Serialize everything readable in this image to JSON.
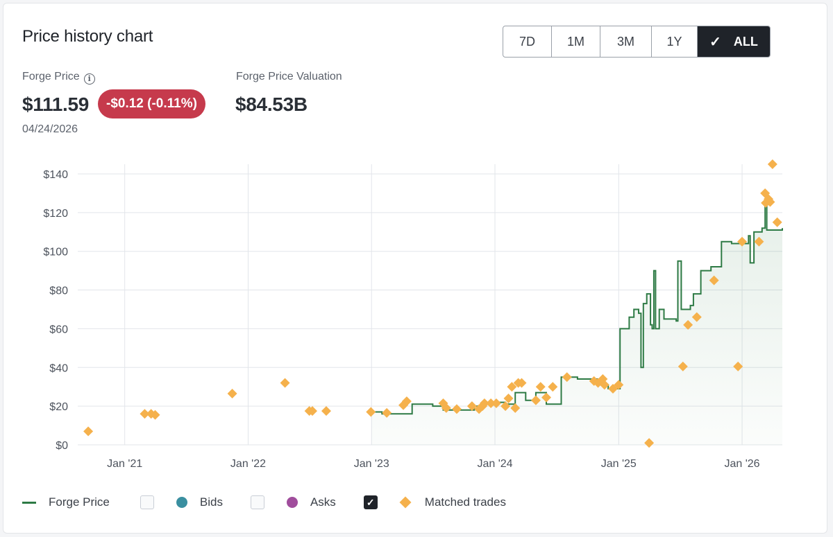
{
  "title": "Price history chart",
  "range_buttons": [
    "7D",
    "1M",
    "3M",
    "1Y",
    "ALL"
  ],
  "active_range": "ALL",
  "check_glyph": "✓",
  "forge_price": {
    "label": "Forge Price",
    "value": "$111.59",
    "change": "-$0.12 (-0.11%)",
    "date": "04/24/2026"
  },
  "valuation": {
    "label": "Forge Price Valuation",
    "value": "$84.53B"
  },
  "legend": {
    "forge_price": "Forge Price",
    "bids": "Bids",
    "asks": "Asks",
    "matched": "Matched trades"
  },
  "colors": {
    "line": "#2d7a44",
    "trades": "#f5b14c",
    "bids": "#3a8fa0",
    "asks": "#a04d9c",
    "badge": "#c63a4c"
  },
  "chart_data": {
    "type": "line",
    "x_type": "date",
    "xlim": [
      "2020-08-15",
      "2026-04-30"
    ],
    "ylim": [
      0,
      145
    ],
    "y_ticks": [
      0,
      20,
      40,
      60,
      80,
      100,
      120,
      140
    ],
    "y_tick_labels": [
      "$0",
      "$20",
      "$40",
      "$60",
      "$80",
      "$100",
      "$120",
      "$140"
    ],
    "x_ticks": [
      "2021-01-01",
      "2022-01-01",
      "2023-01-01",
      "2024-01-01",
      "2025-01-01",
      "2026-01-01"
    ],
    "x_tick_labels": [
      "Jan '21",
      "Jan '22",
      "Jan '23",
      "Jan '24",
      "Jan '25",
      "Jan '26"
    ],
    "grid": true,
    "legend_position": "bottom",
    "series": [
      {
        "name": "Forge Price",
        "type": "step-line",
        "points": [
          [
            "2023-01-01",
            17
          ],
          [
            "2023-02-01",
            16
          ],
          [
            "2023-05-01",
            21
          ],
          [
            "2023-07-01",
            20
          ],
          [
            "2023-08-01",
            18
          ],
          [
            "2023-10-01",
            18
          ],
          [
            "2023-11-01",
            20
          ],
          [
            "2023-12-01",
            22
          ],
          [
            "2024-01-01",
            22
          ],
          [
            "2024-02-01",
            21
          ],
          [
            "2024-03-01",
            27
          ],
          [
            "2024-04-01",
            23
          ],
          [
            "2024-05-01",
            27
          ],
          [
            "2024-06-01",
            21
          ],
          [
            "2024-07-01",
            21
          ],
          [
            "2024-07-15",
            35
          ],
          [
            "2024-09-01",
            34
          ],
          [
            "2024-10-01",
            34
          ],
          [
            "2024-11-15",
            31
          ],
          [
            "2024-12-01",
            29
          ],
          [
            "2025-01-01",
            29
          ],
          [
            "2025-01-05",
            60
          ],
          [
            "2025-02-01",
            66
          ],
          [
            "2025-02-15",
            70
          ],
          [
            "2025-03-01",
            68
          ],
          [
            "2025-03-08",
            40
          ],
          [
            "2025-03-15",
            73
          ],
          [
            "2025-03-25",
            78
          ],
          [
            "2025-04-05",
            62
          ],
          [
            "2025-04-10",
            60
          ],
          [
            "2025-04-15",
            90
          ],
          [
            "2025-04-20",
            60
          ],
          [
            "2025-05-01",
            70
          ],
          [
            "2025-05-15",
            65
          ],
          [
            "2025-06-20",
            64
          ],
          [
            "2025-06-25",
            95
          ],
          [
            "2025-07-05",
            70
          ],
          [
            "2025-08-01",
            72
          ],
          [
            "2025-08-10",
            78
          ],
          [
            "2025-09-01",
            90
          ],
          [
            "2025-10-01",
            92
          ],
          [
            "2025-11-01",
            105
          ],
          [
            "2025-12-01",
            104
          ],
          [
            "2026-01-20",
            108
          ],
          [
            "2026-01-25",
            94
          ],
          [
            "2026-02-05",
            110
          ],
          [
            "2026-03-01",
            112
          ],
          [
            "2026-03-10",
            125
          ],
          [
            "2026-03-15",
            111
          ],
          [
            "2026-04-30",
            112
          ]
        ]
      },
      {
        "name": "Matched trades",
        "type": "scatter",
        "points": [
          [
            "2020-09-15",
            7
          ],
          [
            "2021-03-01",
            16
          ],
          [
            "2021-03-20",
            16
          ],
          [
            "2021-04-01",
            15.5
          ],
          [
            "2021-11-15",
            26.5
          ],
          [
            "2022-04-20",
            32
          ],
          [
            "2022-07-01",
            17.5
          ],
          [
            "2022-07-10",
            17.5
          ],
          [
            "2022-08-20",
            17.5
          ],
          [
            "2022-12-30",
            17
          ],
          [
            "2023-02-15",
            16.5
          ],
          [
            "2023-04-05",
            20.5
          ],
          [
            "2023-04-15",
            22.5
          ],
          [
            "2023-08-01",
            21.5
          ],
          [
            "2023-08-10",
            19
          ],
          [
            "2023-09-10",
            18.5
          ],
          [
            "2023-10-25",
            20
          ],
          [
            "2023-11-15",
            18.5
          ],
          [
            "2023-11-25",
            20
          ],
          [
            "2023-12-01",
            21.5
          ],
          [
            "2023-12-20",
            21.5
          ],
          [
            "2024-01-05",
            21.5
          ],
          [
            "2024-02-01",
            20
          ],
          [
            "2024-02-10",
            24
          ],
          [
            "2024-02-20",
            30
          ],
          [
            "2024-03-01",
            19
          ],
          [
            "2024-03-10",
            32
          ],
          [
            "2024-03-20",
            32
          ],
          [
            "2024-05-01",
            23
          ],
          [
            "2024-05-15",
            30
          ],
          [
            "2024-06-01",
            24.5
          ],
          [
            "2024-06-20",
            30
          ],
          [
            "2024-08-01",
            35
          ],
          [
            "2024-10-20",
            33
          ],
          [
            "2024-11-01",
            32
          ],
          [
            "2024-11-15",
            34
          ],
          [
            "2024-11-20",
            31
          ],
          [
            "2024-12-15",
            29
          ],
          [
            "2025-01-01",
            31
          ],
          [
            "2025-04-01",
            1
          ],
          [
            "2025-07-10",
            40.5
          ],
          [
            "2025-07-25",
            62
          ],
          [
            "2025-08-20",
            66
          ],
          [
            "2025-10-10",
            85
          ],
          [
            "2025-12-20",
            40.5
          ],
          [
            "2026-01-01",
            105
          ],
          [
            "2026-02-20",
            105
          ],
          [
            "2026-03-10",
            130
          ],
          [
            "2026-03-12",
            125
          ],
          [
            "2026-03-20",
            127
          ],
          [
            "2026-03-25",
            125.5
          ],
          [
            "2026-04-01",
            145
          ],
          [
            "2026-04-15",
            115
          ]
        ]
      }
    ]
  }
}
